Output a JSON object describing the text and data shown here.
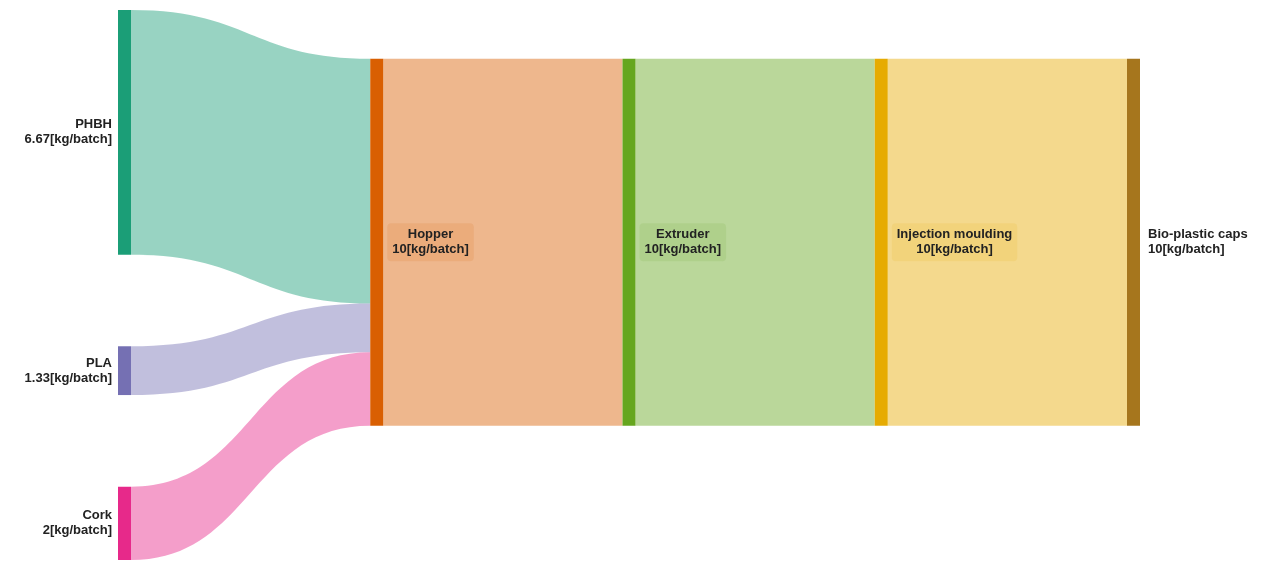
{
  "chart_data": {
    "type": "other",
    "categories": [
      "PHBH",
      "PLA",
      "Cork",
      "Hopper",
      "Extruder",
      "Injection moulding",
      "Bio-plastic caps"
    ],
    "values": [
      6.67,
      1.33,
      2,
      10,
      10,
      10,
      10
    ],
    "value_labels": [
      "6.67[kg/batch]",
      "1.33[kg/batch]",
      "2[kg/batch]",
      "10[kg/batch]",
      "10[kg/batch]",
      "10[kg/batch]",
      "10[kg/batch]"
    ],
    "colors": [
      "#1b9e77",
      "#7570b3",
      "#e7298a",
      "#d95f02",
      "#66a61e",
      "#e6ab02",
      "#a6761d"
    ]
  }
}
